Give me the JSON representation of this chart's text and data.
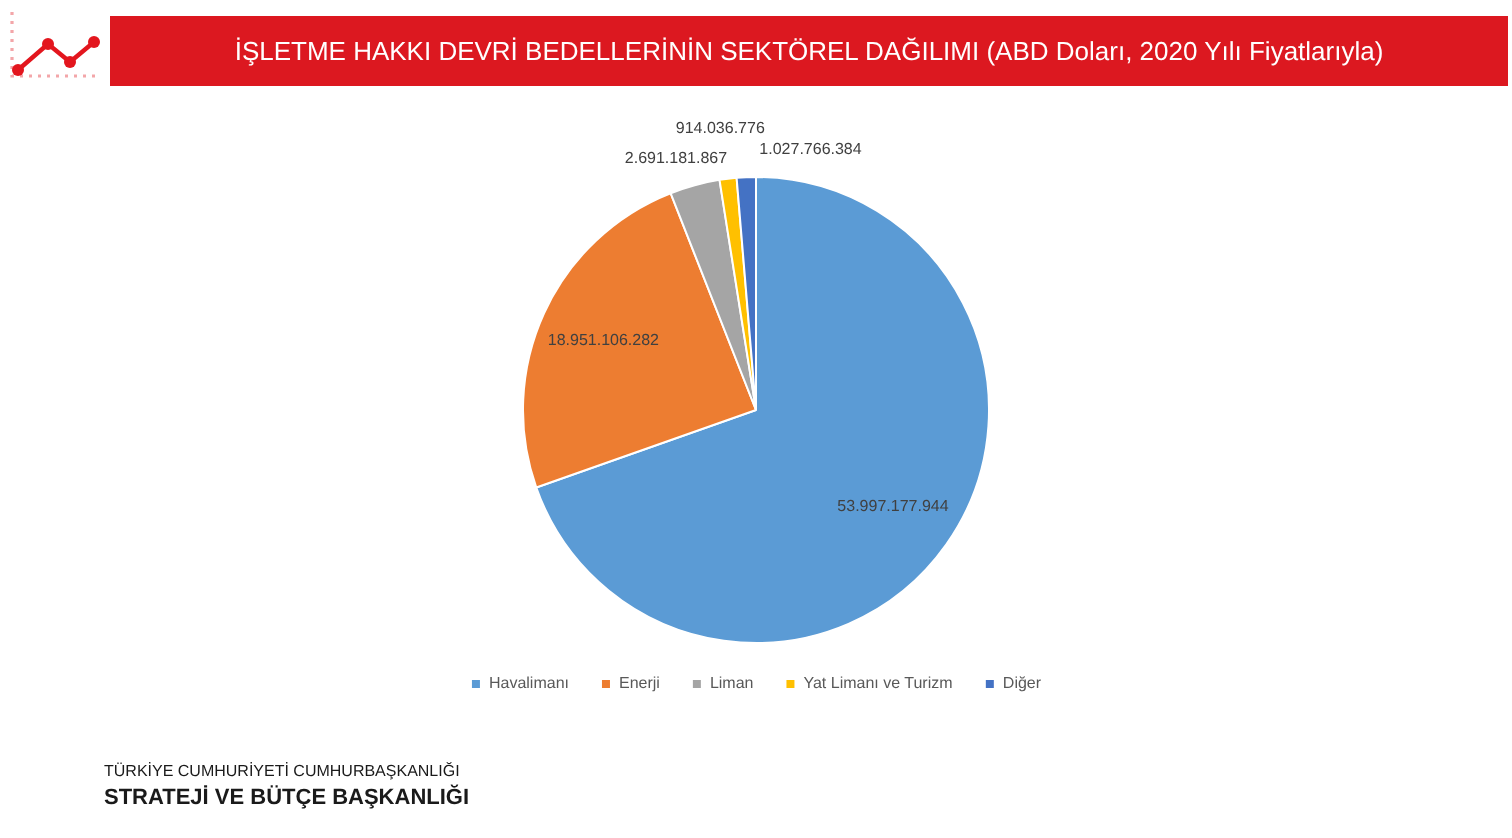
{
  "chart_data": {
    "type": "pie",
    "title": "İŞLETME HAKKI DEVRİ BEDELLERİNİN SEKTÖREL DAĞILIMI (ABD Doları, 2020 Yılı Fiyatlarıyla)",
    "categories": [
      "Havalimanı",
      "Enerji",
      "Liman",
      "Yat Limanı ve Turizm",
      "Diğer"
    ],
    "values": [
      53997177944,
      18951106282,
      2691181867,
      914036776,
      1027766384
    ],
    "colors": [
      "#5b9bd5",
      "#ed7d31",
      "#a5a5a5",
      "#ffc000",
      "#4472c4"
    ],
    "value_labels": [
      "53.997.177.944",
      "18.951.106.282",
      "2.691.181.867",
      "914.036.776",
      "1.027.766.384"
    ],
    "legend": "bottom",
    "annotations": [
      "TÜRKİYE CUMHURİYETİ CUMHURBAŞKANLIĞI",
      "STRATEJİ VE BÜTÇE BAŞKANLIĞI"
    ]
  }
}
